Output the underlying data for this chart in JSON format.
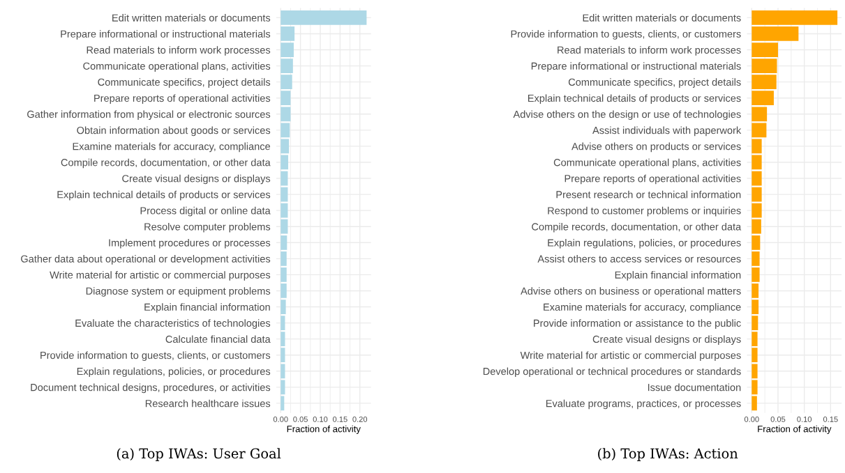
{
  "chart_data": [
    {
      "type": "bar",
      "orientation": "horizontal",
      "xlabel": "Fraction of activity",
      "color": "#add8e6",
      "grid": true,
      "annotations": [
        "(a) Top IWAs: User Goal"
      ],
      "categories": [
        "Edit written materials or documents",
        "Prepare informational or instructional materials",
        "Read materials to inform work processes",
        "Communicate operational plans, activities",
        "Communicate specifics, project details",
        "Prepare reports of operational activities",
        "Gather information from physical or electronic sources",
        "Obtain information about goods or services",
        "Examine materials for accuracy, compliance",
        "Compile records, documentation, or other data",
        "Create visual designs or displays",
        "Explain technical details of products or services",
        "Process digital or online data",
        "Resolve computer problems",
        "Implement procedures or processes",
        "Gather data about operational or development activities",
        "Write material for artistic or commercial purposes",
        "Diagnose system or equipment problems",
        "Explain financial information",
        "Evaluate the characteristics of technologies",
        "Calculate financial data",
        "Provide information to guests, clients, or customers",
        "Explain regulations, policies, or procedures",
        "Document technical designs, procedures, or activities",
        "Research healthcare issues"
      ],
      "values": [
        0.217,
        0.035,
        0.033,
        0.031,
        0.029,
        0.025,
        0.025,
        0.023,
        0.021,
        0.019,
        0.018,
        0.018,
        0.018,
        0.018,
        0.016,
        0.015,
        0.015,
        0.015,
        0.013,
        0.011,
        0.011,
        0.011,
        0.011,
        0.011,
        0.009
      ],
      "xlim": [
        -0.011,
        0.228
      ],
      "xticks": [
        {
          "value": 0,
          "label": "0.00"
        },
        {
          "value": 0.05,
          "label": "0.05"
        },
        {
          "value": 0.1,
          "label": "0.10"
        },
        {
          "value": 0.15,
          "label": "0.15"
        },
        {
          "value": 0.2,
          "label": "0.20"
        }
      ]
    },
    {
      "type": "bar",
      "orientation": "horizontal",
      "xlabel": "Fraction of activity",
      "color": "#ffa500",
      "grid": true,
      "annotations": [
        "(b) Top IWAs: Action"
      ],
      "categories": [
        "Edit written materials or documents",
        "Provide information to guests, clients, or customers",
        "Read materials to inform work processes",
        "Prepare informational or instructional materials",
        "Communicate specifics, project details",
        "Explain technical details of products or services",
        "Advise others on the design or use of technologies",
        "Assist individuals with paperwork",
        "Advise others on products or services",
        "Communicate operational plans, activities",
        "Prepare reports of operational activities",
        "Present research or technical information",
        "Respond to customer problems or inquiries",
        "Compile records, documentation, or other data",
        "Explain regulations, policies, or procedures",
        "Assist others to access services or resources",
        "Explain financial information",
        "Advise others on business or operational matters",
        "Examine materials for accuracy, compliance",
        "Provide information or assistance to the public",
        "Create visual designs or displays",
        "Write material for artistic or commercial purposes",
        "Develop operational or technical procedures or standards",
        "Issue documentation",
        "Evaluate programs, practices, or processes"
      ],
      "values": [
        0.163,
        0.089,
        0.05,
        0.048,
        0.047,
        0.042,
        0.029,
        0.028,
        0.019,
        0.019,
        0.019,
        0.019,
        0.019,
        0.018,
        0.016,
        0.015,
        0.015,
        0.013,
        0.013,
        0.012,
        0.011,
        0.011,
        0.011,
        0.011,
        0.01
      ],
      "xlim": [
        -0.009,
        0.171
      ],
      "xticks": [
        {
          "value": 0,
          "label": "0.00"
        },
        {
          "value": 0.05,
          "label": "0.05"
        },
        {
          "value": 0.1,
          "label": "0.10"
        },
        {
          "value": 0.15,
          "label": "0.15"
        }
      ]
    }
  ]
}
